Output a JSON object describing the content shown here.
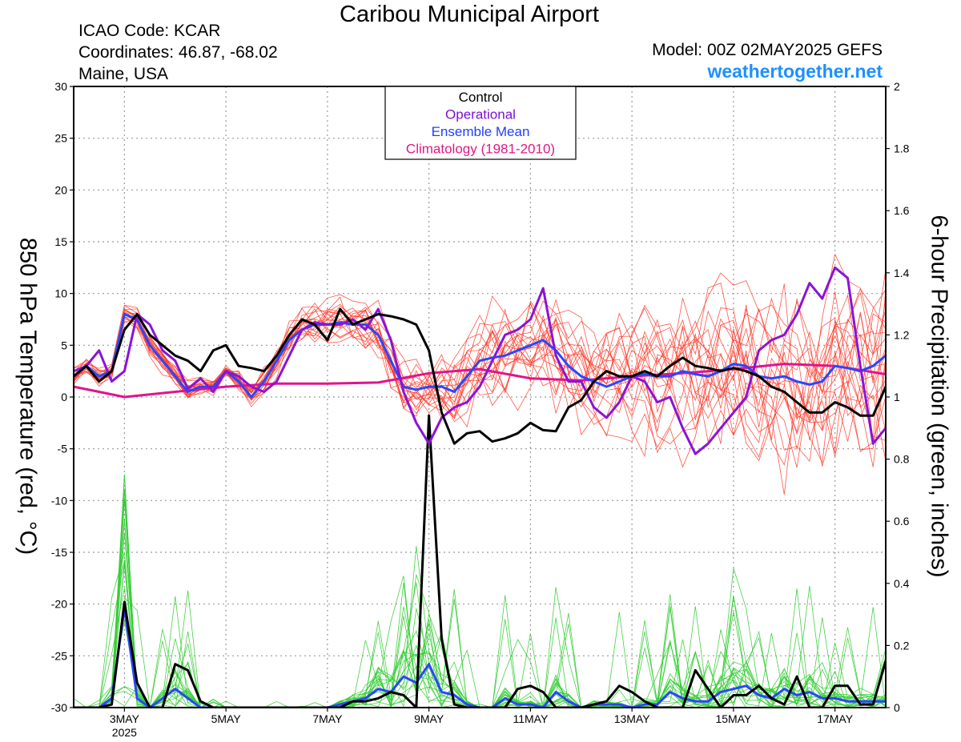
{
  "header": {
    "title": "Caribou Municipal Airport",
    "icao": "ICAO Code: KCAR",
    "coords": "Coordinates: 46.87, -68.02",
    "region": "Maine, USA",
    "model": "Model: 00Z 02MAY2025 GEFS",
    "site": "weathertogether.net"
  },
  "chart_data": {
    "type": "line",
    "ylabel_left": "850 hPa Temperature (red, °C)",
    "ylabel_right": "6-hour Precipitation (green, inches)",
    "y_left_ticks": [
      "30",
      "25",
      "20",
      "15",
      "10",
      "5",
      "0",
      "-5",
      "-10",
      "-15",
      "-20",
      "-25",
      "-30"
    ],
    "y_right_ticks": [
      "2",
      "1.8",
      "1.6",
      "1.4",
      "1.2",
      "1",
      "0.8",
      "0.6",
      "0.4",
      "0.2",
      "0"
    ],
    "ylim_left": [
      -30,
      30
    ],
    "ylim_right": [
      0,
      2
    ],
    "xlim_days": [
      2.0,
      18.0
    ],
    "x_ticks": [
      {
        "day": 3,
        "label": "3MAY",
        "sub": "2025"
      },
      {
        "day": 5,
        "label": "5MAY",
        "sub": ""
      },
      {
        "day": 7,
        "label": "7MAY",
        "sub": ""
      },
      {
        "day": 9,
        "label": "9MAY",
        "sub": ""
      },
      {
        "day": 11,
        "label": "11MAY",
        "sub": ""
      },
      {
        "day": 13,
        "label": "13MAY",
        "sub": ""
      },
      {
        "day": 15,
        "label": "15MAY",
        "sub": ""
      },
      {
        "day": 17,
        "label": "17MAY",
        "sub": ""
      }
    ],
    "legend": [
      {
        "label": "Control",
        "color": "#000000"
      },
      {
        "label": "Operational",
        "color": "#7f10d0"
      },
      {
        "label": "Ensemble Mean",
        "color": "#2040ff"
      },
      {
        "label": "Climatology (1981-2010)",
        "color": "#e01888"
      }
    ],
    "colors": {
      "control": "#000000",
      "operational": "#8a14d6",
      "mean": "#2a46ff",
      "climatology": "#e0148c",
      "member_temp": "#ff3a2a",
      "member_precip": "#33cc33",
      "grid": "#9a9a9a"
    },
    "series": [
      {
        "name": "Control",
        "axis": "temp",
        "x": [
          2.0,
          2.25,
          2.5,
          2.75,
          3.0,
          3.25,
          3.5,
          3.75,
          4.0,
          4.25,
          4.5,
          4.75,
          5.0,
          5.25,
          5.5,
          5.75,
          6.0,
          6.25,
          6.5,
          6.75,
          7.0,
          7.25,
          7.5,
          7.75,
          8.0,
          8.25,
          8.5,
          8.75,
          9.0,
          9.25,
          9.5,
          9.75,
          10.0,
          10.25,
          10.5,
          10.75,
          11.0,
          11.25,
          11.5,
          11.75,
          12.0,
          12.25,
          12.5,
          12.75,
          13.0,
          13.25,
          13.5,
          13.75,
          14.0,
          14.25,
          14.5,
          14.75,
          15.0,
          15.25,
          15.5,
          15.75,
          16.0,
          16.25,
          16.5,
          16.75,
          17.0,
          17.25,
          17.5,
          17.75,
          18.0
        ],
        "y": [
          2.0,
          3.0,
          1.5,
          2.5,
          6.5,
          8.0,
          6.0,
          5.0,
          4.0,
          3.5,
          2.5,
          4.5,
          5.0,
          3.0,
          2.8,
          2.5,
          4.0,
          6.0,
          7.5,
          7.0,
          5.5,
          8.5,
          7.0,
          7.5,
          8.0,
          7.8,
          7.5,
          7.0,
          4.5,
          -1.5,
          -4.5,
          -3.5,
          -3.3,
          -4.3,
          -4.0,
          -3.5,
          -2.5,
          -3.2,
          -3.3,
          -1.0,
          -0.3,
          1.5,
          2.5,
          2.0,
          2.0,
          2.5,
          2.0,
          3.0,
          3.8,
          3.0,
          2.8,
          2.5,
          2.8,
          2.5,
          2.0,
          1.0,
          0.5,
          -0.5,
          -1.5,
          -1.5,
          -0.5,
          -1.0,
          -1.8,
          -1.8,
          1.0
        ]
      },
      {
        "name": "Operational",
        "axis": "temp",
        "x": [
          2.0,
          2.25,
          2.5,
          2.75,
          3.0,
          3.25,
          3.5,
          3.75,
          4.0,
          4.25,
          4.5,
          4.75,
          5.0,
          5.25,
          5.5,
          5.75,
          6.0,
          6.25,
          6.5,
          6.75,
          7.0,
          7.25,
          7.5,
          7.75,
          8.0,
          8.25,
          8.5,
          8.75,
          9.0,
          9.25,
          9.5,
          9.75,
          10.0,
          10.25,
          10.5,
          10.75,
          11.0,
          11.25,
          11.5,
          11.75,
          12.0,
          12.25,
          12.5,
          12.75,
          13.0,
          13.25,
          13.5,
          13.75,
          14.0,
          14.25,
          14.5,
          14.75,
          15.0,
          15.25,
          15.5,
          15.75,
          16.0,
          16.25,
          16.5,
          16.75,
          17.0,
          17.25,
          17.5,
          17.75,
          18.0
        ],
        "y": [
          2.5,
          3.0,
          4.5,
          1.5,
          2.5,
          8.0,
          7.0,
          4.5,
          3.5,
          0.8,
          1.8,
          0.5,
          2.5,
          2.0,
          1.0,
          0.5,
          1.5,
          4.0,
          6.5,
          7.2,
          7.0,
          7.0,
          7.5,
          6.5,
          8.5,
          5.5,
          0.5,
          -2.5,
          -4.5,
          -2.0,
          -1.0,
          -0.5,
          1.0,
          3.5,
          6.0,
          6.5,
          7.5,
          10.5,
          4.0,
          1.5,
          1.5,
          -1.0,
          -2.0,
          -0.5,
          2.0,
          1.5,
          -0.5,
          0.0,
          -3.0,
          -5.5,
          -4.5,
          -3.0,
          -1.5,
          0.0,
          4.5,
          5.5,
          6.0,
          8.0,
          11.0,
          9.5,
          12.5,
          11.5,
          3.0,
          -4.5,
          -3.0
        ]
      },
      {
        "name": "Ensemble Mean",
        "axis": "temp",
        "x": [
          2.0,
          2.25,
          2.5,
          2.75,
          3.0,
          3.25,
          3.5,
          3.75,
          4.0,
          4.25,
          4.5,
          4.75,
          5.0,
          5.25,
          5.5,
          5.75,
          6.0,
          6.25,
          6.5,
          6.75,
          7.0,
          7.25,
          7.5,
          7.75,
          8.0,
          8.25,
          8.5,
          8.75,
          9.0,
          9.25,
          9.5,
          9.75,
          10.0,
          10.25,
          10.5,
          10.75,
          11.0,
          11.25,
          11.5,
          11.75,
          12.0,
          12.25,
          12.5,
          12.75,
          13.0,
          13.25,
          13.5,
          13.75,
          14.0,
          14.25,
          14.5,
          14.75,
          15.0,
          15.25,
          15.5,
          15.75,
          16.0,
          16.25,
          16.5,
          16.75,
          17.0,
          17.25,
          17.5,
          17.75,
          18.0
        ],
        "y": [
          2.0,
          3.0,
          2.0,
          2.5,
          8.0,
          7.5,
          5.0,
          3.5,
          2.0,
          0.5,
          1.0,
          1.0,
          2.5,
          1.5,
          0.0,
          1.5,
          3.5,
          5.5,
          6.5,
          7.0,
          7.0,
          7.2,
          7.0,
          7.0,
          6.0,
          3.5,
          1.0,
          0.7,
          1.0,
          1.0,
          0.5,
          2.0,
          3.5,
          3.8,
          4.0,
          4.5,
          5.0,
          5.5,
          4.5,
          3.0,
          2.0,
          1.5,
          1.0,
          1.5,
          2.0,
          2.2,
          2.0,
          2.0,
          2.5,
          2.2,
          2.0,
          2.5,
          3.2,
          3.0,
          2.0,
          1.8,
          2.0,
          1.5,
          1.2,
          1.5,
          3.0,
          2.8,
          2.5,
          3.0,
          4.0
        ]
      },
      {
        "name": "Climatology (1981-2010)",
        "axis": "temp",
        "x": [
          2.0,
          2.5,
          3.0,
          4.0,
          5.0,
          6.0,
          7.0,
          8.0,
          9.0,
          10.0,
          11.0,
          12.0,
          13.0,
          14.0,
          15.0,
          16.0,
          17.0,
          18.0
        ],
        "y": [
          1.0,
          0.5,
          0.0,
          0.5,
          1.0,
          1.3,
          1.3,
          1.4,
          2.3,
          2.7,
          1.8,
          1.6,
          2.0,
          2.3,
          2.7,
          3.2,
          3.0,
          2.2
        ]
      },
      {
        "name": "Control precipitation",
        "axis": "precip",
        "x": [
          2.0,
          2.25,
          2.5,
          2.75,
          3.0,
          3.25,
          3.5,
          3.75,
          4.0,
          4.25,
          4.5,
          4.75,
          5.0,
          5.25,
          5.5,
          5.75,
          6.0,
          6.25,
          6.5,
          6.75,
          7.0,
          7.25,
          7.5,
          7.75,
          8.0,
          8.25,
          8.5,
          8.75,
          9.0,
          9.25,
          9.5,
          9.75,
          10.0,
          10.25,
          10.5,
          10.75,
          11.0,
          11.25,
          11.5,
          11.75,
          12.0,
          12.25,
          12.5,
          12.75,
          13.0,
          13.25,
          13.5,
          13.75,
          14.0,
          14.25,
          14.5,
          14.75,
          15.0,
          15.25,
          15.5,
          15.75,
          16.0,
          16.25,
          16.5,
          16.75,
          17.0,
          17.25,
          17.5,
          17.75,
          18.0
        ],
        "y": [
          0,
          0,
          0,
          0.01,
          0.34,
          0.08,
          0,
          0,
          0.14,
          0.12,
          0.02,
          0,
          0,
          0,
          0,
          0,
          0,
          0,
          0,
          0,
          0,
          0,
          0.02,
          0.02,
          0.03,
          0.05,
          0.04,
          0,
          0.94,
          0.22,
          0.01,
          0,
          0,
          0,
          0,
          0.06,
          0.07,
          0.05,
          0,
          0,
          0,
          0.01,
          0.02,
          0.07,
          0.05,
          0.02,
          0,
          0,
          0,
          0.12,
          0.06,
          0,
          0.04,
          0.04,
          0.07,
          0.03,
          0.01,
          0.1,
          0,
          0,
          0.07,
          0.07,
          0.01,
          0.01,
          0.15
        ]
      },
      {
        "name": "Mean precipitation",
        "axis": "precip",
        "x": [
          2.0,
          2.25,
          2.5,
          2.75,
          3.0,
          3.25,
          3.5,
          3.75,
          4.0,
          4.25,
          4.5,
          4.75,
          5.0,
          5.25,
          5.5,
          5.75,
          6.0,
          6.25,
          6.5,
          6.75,
          7.0,
          7.25,
          7.5,
          7.75,
          8.0,
          8.25,
          8.5,
          8.75,
          9.0,
          9.25,
          9.5,
          9.75,
          10.0,
          10.25,
          10.5,
          10.75,
          11.0,
          11.25,
          11.5,
          11.75,
          12.0,
          12.25,
          12.5,
          12.75,
          13.0,
          13.25,
          13.5,
          13.75,
          14.0,
          14.25,
          14.5,
          14.75,
          15.0,
          15.25,
          15.5,
          15.75,
          16.0,
          16.25,
          16.5,
          16.75,
          17.0,
          17.25,
          17.5,
          17.75,
          18.0
        ],
        "y": [
          0,
          0,
          0,
          0.03,
          0.32,
          0.03,
          0,
          0.03,
          0.06,
          0.03,
          0,
          0,
          0,
          0,
          0,
          0,
          0,
          0,
          0,
          0,
          0,
          0.01,
          0.02,
          0.03,
          0.06,
          0.05,
          0.1,
          0.08,
          0.14,
          0.05,
          0.04,
          0.01,
          0,
          0,
          0.03,
          0.01,
          0.01,
          0,
          0.05,
          0.02,
          0,
          0.01,
          0.01,
          0.01,
          0,
          0.01,
          0.01,
          0.05,
          0.03,
          0.02,
          0.02,
          0.05,
          0.06,
          0.07,
          0.04,
          0.03,
          0.06,
          0.04,
          0.05,
          0.03,
          0.03,
          0.02,
          0.02,
          0.02,
          0.02
        ]
      }
    ]
  }
}
